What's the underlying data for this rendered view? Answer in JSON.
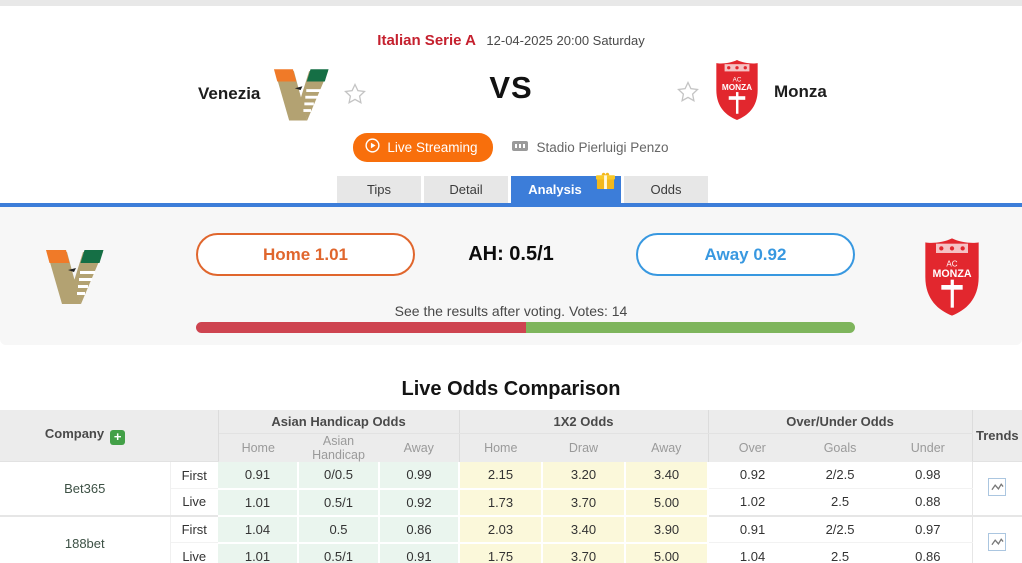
{
  "header": {
    "league": "Italian Serie A",
    "datetime": "12-04-2025 20:00 Saturday",
    "home_team": "Venezia",
    "away_team": "Monza",
    "vs_label": "VS",
    "live_streaming_label": "Live Streaming",
    "venue": "Stadio Pierluigi Penzo"
  },
  "tabs": [
    {
      "label": "Tips",
      "active": false
    },
    {
      "label": "Detail",
      "active": false
    },
    {
      "label": "Analysis",
      "active": true,
      "has_gift_icon": true
    },
    {
      "label": "Odds",
      "active": false
    }
  ],
  "analysis": {
    "home_vote_label": "Home 1.01",
    "handicap_label": "AH: 0.5/1",
    "away_vote_label": "Away 0.92",
    "vote_note": "See the results after voting. Votes: 14",
    "votes": 14,
    "progress": {
      "home_pct": 50,
      "away_pct": 50
    }
  },
  "odds": {
    "title": "Live Odds Comparison",
    "company_header": "Company",
    "trends_header": "Trends",
    "groups": [
      "Asian Handicap Odds",
      "1X2 Odds",
      "Over/Under Odds"
    ],
    "sub_headers": [
      "Home",
      "Asian Handicap",
      "Away",
      "Home",
      "Draw",
      "Away",
      "Over",
      "Goals",
      "Under"
    ],
    "companies": [
      {
        "name": "Bet365",
        "rows": [
          {
            "label": "First",
            "values": [
              "0.91",
              "0/0.5",
              "0.99",
              "2.15",
              "3.20",
              "3.40",
              "0.92",
              "2/2.5",
              "0.98"
            ]
          },
          {
            "label": "Live",
            "values": [
              "1.01",
              "0.5/1",
              "0.92",
              "1.73",
              "3.70",
              "5.00",
              "1.02",
              "2.5",
              "0.88"
            ]
          }
        ]
      },
      {
        "name": "188bet",
        "rows": [
          {
            "label": "First",
            "values": [
              "1.04",
              "0.5",
              "0.86",
              "2.03",
              "3.40",
              "3.90",
              "0.91",
              "2/2.5",
              "0.97"
            ]
          },
          {
            "label": "Live",
            "values": [
              "1.01",
              "0.5/1",
              "0.91",
              "1.75",
              "3.70",
              "5.00",
              "1.04",
              "2.5",
              "0.86"
            ]
          }
        ]
      }
    ]
  },
  "icons": {
    "favorite": "star-icon",
    "play": "play-circle-icon",
    "venue": "stadium-icon",
    "gift": "gift-icon",
    "add_company": "plus-icon",
    "trend": "trend-chart-icon"
  },
  "colors": {
    "league_red": "#c5202e",
    "stream_orange": "#f86f0c",
    "tab_active_blue": "#3c7dd9",
    "home_vote_orange": "#e0662d",
    "away_vote_blue": "#3898e0",
    "vote_bar_red": "#ce4450",
    "vote_bar_green": "#7eb55c",
    "ah_cell_green": "#eaf5ee",
    "x12_cell_yellow": "#fbf8da"
  }
}
